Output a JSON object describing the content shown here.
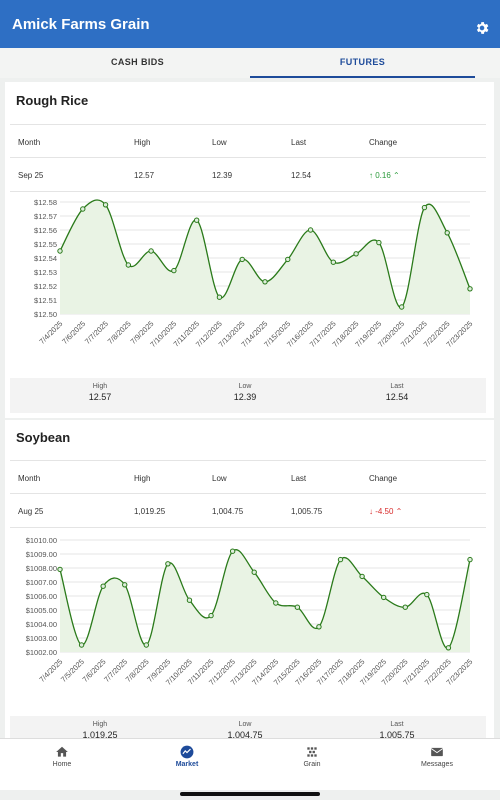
{
  "app": {
    "title": "Amick Farms Grain",
    "settings_icon": "gear-icon"
  },
  "tabs": [
    {
      "label": "CASH BIDS"
    },
    {
      "label": "FUTURES"
    }
  ],
  "table_headers": {
    "month": "Month",
    "high": "High",
    "low": "Low",
    "last": "Last",
    "change": "Change"
  },
  "summary_labels": {
    "high": "High",
    "low": "Low",
    "last": "Last"
  },
  "colors": {
    "appbar": "#2e6fc4",
    "active_tab": "#1e4b9a",
    "up": "#2a9a3a",
    "down": "#d82a2a",
    "line": "#2a7a1a",
    "fill": "#e9f3e4"
  },
  "cards": [
    {
      "title": "Rough Rice",
      "row": {
        "month": "Sep 25",
        "high": "12.57",
        "low": "12.39",
        "last": "12.54",
        "change": "↑ 0.16 ⌃",
        "direction": "up"
      },
      "summary": {
        "high": "12.57",
        "low": "12.39",
        "last": "12.54"
      },
      "chart_data": {
        "type": "line",
        "x": [
          "7/4/2025",
          "7/6/2025",
          "7/7/2025",
          "7/8/2025",
          "7/9/2025",
          "7/10/2025",
          "7/11/2025",
          "7/12/2025",
          "7/13/2025",
          "7/14/2025",
          "7/15/2025",
          "7/16/2025",
          "7/17/2025",
          "7/18/2025",
          "7/19/2025",
          "7/20/2025",
          "7/21/2025",
          "7/22/2025",
          "7/23/2025"
        ],
        "y": [
          12.545,
          12.575,
          12.578,
          12.535,
          12.545,
          12.531,
          12.567,
          12.512,
          12.539,
          12.523,
          12.539,
          12.56,
          12.537,
          12.543,
          12.551,
          12.505,
          12.576,
          12.558,
          12.518
        ],
        "y_ticks": [
          "$12.50",
          "$12.51",
          "$12.52",
          "$12.53",
          "$12.54",
          "$12.55",
          "$12.56",
          "$12.57",
          "$12.58"
        ],
        "ylim": [
          12.5,
          12.58
        ],
        "grid": "horizontal"
      }
    },
    {
      "title": "Soybean",
      "row": {
        "month": "Aug 25",
        "high": "1,019.25",
        "low": "1,004.75",
        "last": "1,005.75",
        "change": "↓ -4.50 ⌃",
        "direction": "down"
      },
      "summary": {
        "high": "1,019.25",
        "low": "1,004.75",
        "last": "1,005.75"
      },
      "chart_data": {
        "type": "line",
        "x": [
          "7/4/2025",
          "7/5/2025",
          "7/6/2025",
          "7/7/2025",
          "7/8/2025",
          "7/9/2025",
          "7/10/2025",
          "7/11/2025",
          "7/12/2025",
          "7/13/2025",
          "7/14/2025",
          "7/15/2025",
          "7/16/2025",
          "7/17/2025",
          "7/18/2025",
          "7/19/2025",
          "7/20/2025",
          "7/21/2025",
          "7/22/2025",
          "7/23/2025"
        ],
        "y": [
          1007.9,
          1002.5,
          1006.7,
          1006.8,
          1002.5,
          1008.3,
          1005.7,
          1004.6,
          1009.2,
          1007.7,
          1005.5,
          1005.2,
          1003.8,
          1008.6,
          1007.4,
          1005.9,
          1005.2,
          1006.1,
          1002.3,
          1008.6
        ],
        "y_ticks": [
          "$1002.00",
          "$1003.00",
          "$1004.00",
          "$1005.00",
          "$1006.00",
          "$1007.00",
          "$1008.00",
          "$1009.00",
          "$1010.00"
        ],
        "ylim": [
          1002.0,
          1010.0
        ],
        "grid": "horizontal"
      }
    }
  ],
  "nav": [
    {
      "label": "Home",
      "icon": "home-icon"
    },
    {
      "label": "Market",
      "icon": "market-chart-icon",
      "active": true
    },
    {
      "label": "Grain",
      "icon": "grain-icon"
    },
    {
      "label": "Messages",
      "icon": "mail-icon"
    }
  ]
}
